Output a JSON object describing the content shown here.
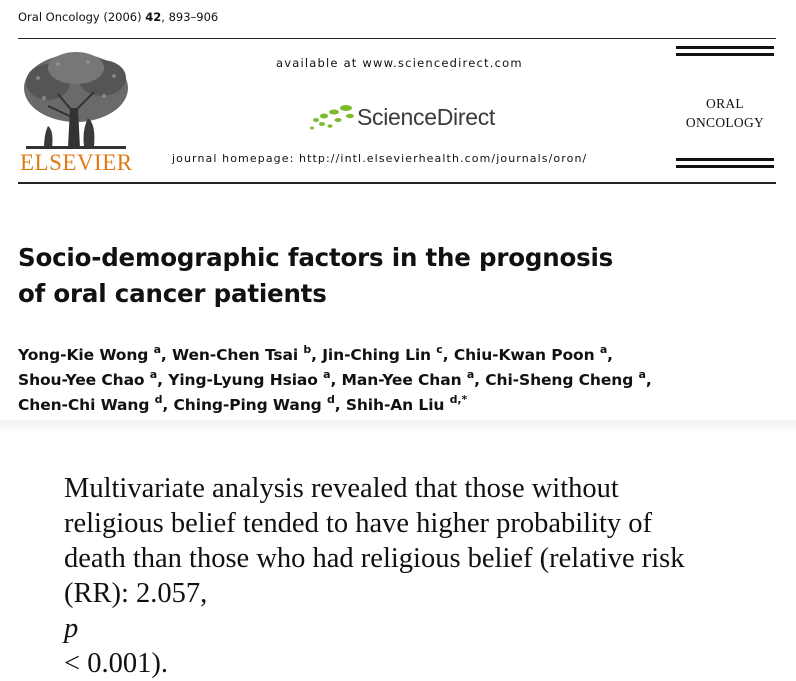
{
  "citation": {
    "journal": "Oral Oncology (2006) ",
    "volume": "42",
    "pages": ", 893–906"
  },
  "publisher": {
    "name": "ELSEVIER"
  },
  "banner": {
    "available_text": "available at www.sciencedirect.com",
    "sd_brand": "ScienceDirect",
    "homepage_text": "journal homepage: http://intl.elsevierhealth.com/journals/oron/"
  },
  "journal": {
    "line1": "ORAL",
    "line2": "ONCOLOGY"
  },
  "article": {
    "title_line1": "Socio-demographic factors in the prognosis",
    "title_line2": "of oral cancer patients"
  },
  "authors": [
    {
      "name": "Yong-Kie Wong",
      "aff": "a"
    },
    {
      "name": "Wen-Chen Tsai",
      "aff": "b"
    },
    {
      "name": "Jin-Ching Lin",
      "aff": "c"
    },
    {
      "name": "Chiu-Kwan Poon",
      "aff": "a"
    },
    {
      "name": "Shou-Yee Chao",
      "aff": "a"
    },
    {
      "name": "Ying-Lyung Hsiao",
      "aff": "a"
    },
    {
      "name": "Man-Yee Chan",
      "aff": "a"
    },
    {
      "name": "Chi-Sheng Cheng",
      "aff": "a"
    },
    {
      "name": "Chen-Chi Wang",
      "aff": "d"
    },
    {
      "name": "Ching-Ping Wang",
      "aff": "d"
    },
    {
      "name": "Shih-An Liu",
      "aff": "d,*"
    }
  ],
  "quote": {
    "line1": "Multivariate analysis revealed that those without",
    "line2": "religious belief tended to have higher probability of",
    "line3": "death than those who had religious belief (relative risk",
    "line4_a": "(RR): 2.057, ",
    "line4_p": "p",
    "line4_b": " < 0.001)."
  },
  "colors": {
    "elsevier_orange": "#e07a14",
    "sd_green": "#7cbb2c",
    "text": "#111111"
  }
}
